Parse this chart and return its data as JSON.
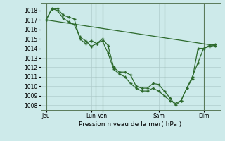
{
  "bg_color": "#cdeaea",
  "grid_color": "#b0cccc",
  "line_color": "#2d6a2d",
  "vline_color": "#5a7a5a",
  "title": "Pression niveau de la mer( hPa )",
  "ylim": [
    1007.5,
    1018.8
  ],
  "yticks": [
    1008,
    1009,
    1010,
    1011,
    1012,
    1013,
    1014,
    1015,
    1016,
    1017,
    1018
  ],
  "xlim": [
    0,
    16
  ],
  "xtick_positions": [
    0.5,
    4.5,
    5.5,
    10.5,
    14.5
  ],
  "xtick_labels": [
    "Jeu",
    "Lun",
    "Ven",
    "Sam",
    "Dim"
  ],
  "vline_positions": [
    0.5,
    5.0,
    5.5,
    11.0,
    14.5
  ],
  "series1_x": [
    0.5,
    1.0,
    1.5,
    2.0,
    2.5,
    3.0,
    3.5,
    4.0,
    4.5,
    5.0,
    5.5,
    6.0,
    6.5,
    7.0,
    7.5,
    8.0,
    8.5,
    9.0,
    9.5,
    10.0,
    10.5,
    11.0,
    11.5,
    12.0,
    12.5,
    13.0,
    13.5,
    14.0,
    14.5,
    15.0,
    15.5
  ],
  "series1_y": [
    1017.0,
    1018.1,
    1018.2,
    1017.5,
    1017.3,
    1017.1,
    1015.0,
    1014.5,
    1014.8,
    1014.5,
    1015.0,
    1014.3,
    1012.0,
    1011.5,
    1011.5,
    1011.2,
    1010.0,
    1009.8,
    1009.8,
    1010.3,
    1010.2,
    1009.5,
    1008.8,
    1008.0,
    1008.5,
    1009.8,
    1010.8,
    1014.0,
    1014.0,
    1014.2,
    1014.3
  ],
  "series2_x": [
    0.5,
    1.0,
    1.5,
    2.0,
    2.5,
    3.0,
    3.5,
    4.0,
    4.5,
    5.0,
    5.5,
    6.0,
    6.5,
    7.0,
    7.5,
    8.0,
    8.5,
    9.0,
    9.5,
    10.0,
    10.5,
    11.0,
    11.5,
    12.0,
    12.5,
    13.0,
    13.5,
    14.0,
    14.5,
    15.0,
    15.5
  ],
  "series2_y": [
    1017.0,
    1018.2,
    1018.0,
    1017.2,
    1016.8,
    1016.5,
    1015.2,
    1014.8,
    1014.2,
    1014.5,
    1014.8,
    1013.5,
    1011.8,
    1011.3,
    1011.0,
    1010.3,
    1009.8,
    1009.5,
    1009.5,
    1009.8,
    1009.5,
    1009.0,
    1008.5,
    1008.2,
    1008.5,
    1009.8,
    1011.0,
    1012.5,
    1014.0,
    1014.3,
    1014.4
  ],
  "series3_x": [
    0.5,
    15.5
  ],
  "series3_y": [
    1017.0,
    1014.3
  ]
}
